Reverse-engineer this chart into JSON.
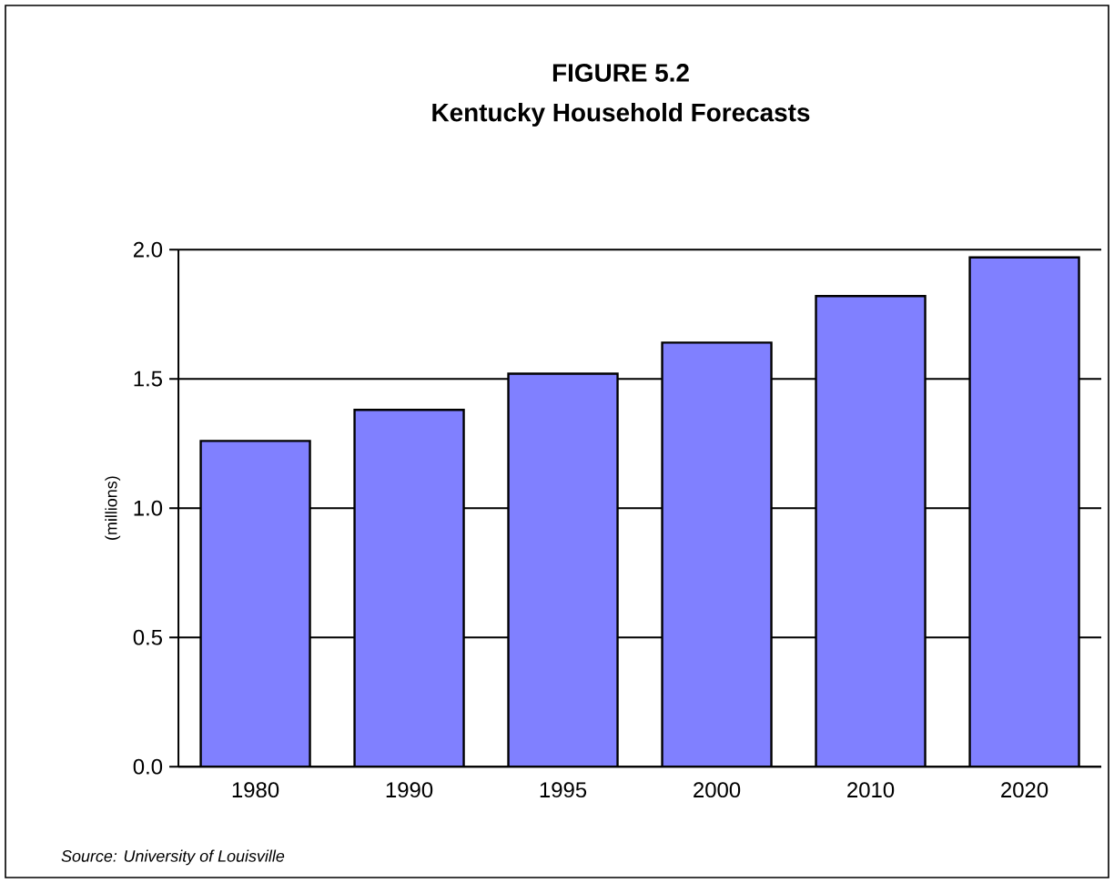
{
  "chart_data": {
    "type": "bar",
    "title": "FIGURE 5.2",
    "subtitle": "Kentucky Household Forecasts",
    "ylabel": "(millions)",
    "categories": [
      "1980",
      "1990",
      "1995",
      "2000",
      "2010",
      "2020"
    ],
    "values": [
      1.26,
      1.38,
      1.52,
      1.64,
      1.82,
      1.97
    ],
    "color": "#8080ff",
    "ylim": [
      0,
      2
    ],
    "yticks": [
      {
        "value": 0,
        "label": "0.0"
      },
      0.5,
      {
        "value": 1,
        "label": "1.0"
      },
      1.5,
      {
        "value": 2,
        "label": "2.0"
      }
    ],
    "grid": "y",
    "annotations": [
      "Source: University of Louisville"
    ]
  }
}
